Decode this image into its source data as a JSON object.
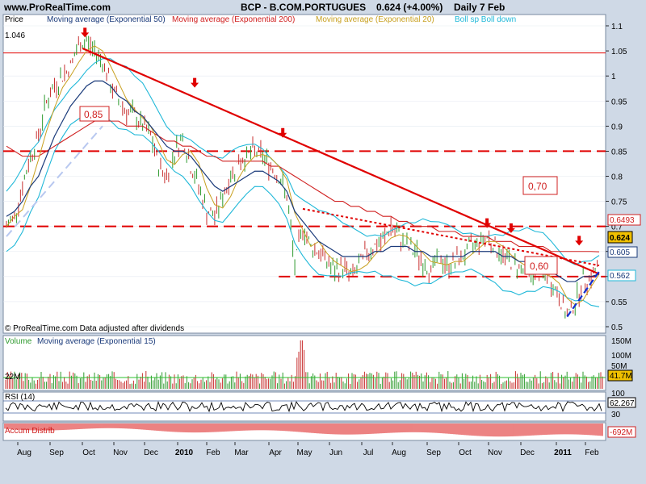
{
  "header": {
    "site": "www.ProRealTime.com",
    "title": "BCP - B.COM.PORTUGUES",
    "quote": "0.624 (+4.00%)",
    "period": "Daily  7 Feb"
  },
  "legend": {
    "price": "Price",
    "ma50": "Moving average (Exponential 50)",
    "ma200": "Moving average (Exponential 200)",
    "ma20": "Moving average (Exponential 20)",
    "bollinger": "Boll sp Boll down"
  },
  "colors": {
    "background": "#cfd9e6",
    "panel": "#ffffff",
    "ma50": "#1a3a7a",
    "ma200": "#d02020",
    "ma20": "#c8a020",
    "bollinger": "#20b8d8",
    "trend": "#e00000",
    "up_bar": "#2e9a2e",
    "down_bar": "#c83030",
    "volume": "#2ec02e",
    "accum": "#e03030"
  },
  "footer_note": "© ProRealTime.com  Data adjusted after dividends",
  "price_labels": {
    "top_left": "1.046",
    "l085": "0,85",
    "l070": "0,70",
    "l060": "0,60"
  },
  "right_badges": {
    "ma200": "0.6493",
    "last": "0.624",
    "ma50": "0.605",
    "boll_down": "0.562",
    "boll_up": "0.64"
  },
  "chart_data": {
    "type": "line",
    "title": "BCP - B.COM.PORTUGUES",
    "x_ticks": [
      "Aug",
      "Sep",
      "Oct",
      "Nov",
      "Dec",
      "2010",
      "Feb",
      "Mar",
      "Apr",
      "May",
      "Jun",
      "Jul",
      "Aug",
      "Sep",
      "Oct",
      "Nov",
      "Dec",
      "2011",
      "Feb"
    ],
    "y_ticks": [
      "1.1",
      "1.05",
      "1",
      "0.95",
      "0.9",
      "0.85",
      "0.8",
      "0.75",
      "0.7",
      "0.65",
      "0.6",
      "0.55",
      "0.5"
    ],
    "ylim": [
      0.5,
      1.1
    ],
    "price_x": [
      0,
      1,
      2,
      3,
      4,
      5,
      6,
      7,
      8,
      9,
      10,
      11,
      12,
      13,
      14,
      15,
      16,
      17,
      18,
      19,
      20,
      21,
      22,
      23,
      24,
      25,
      26,
      27,
      28,
      29,
      30,
      31,
      32,
      33,
      34,
      35,
      36,
      37,
      38,
      39,
      40,
      41,
      42,
      43,
      44,
      45,
      46,
      47,
      48,
      49,
      50,
      51,
      52,
      53,
      54,
      55,
      56,
      57,
      58,
      59,
      60,
      61,
      62,
      63,
      64,
      65,
      66,
      67,
      68,
      69,
      70,
      71,
      72,
      73,
      74
    ],
    "price": [
      0.7,
      0.72,
      0.78,
      0.84,
      0.88,
      0.95,
      0.98,
      1.0,
      1.02,
      1.06,
      1.07,
      1.05,
      1.03,
      0.98,
      0.95,
      0.93,
      0.92,
      0.9,
      0.88,
      0.82,
      0.8,
      0.85,
      0.88,
      0.82,
      0.78,
      0.73,
      0.72,
      0.76,
      0.8,
      0.83,
      0.84,
      0.85,
      0.84,
      0.82,
      0.8,
      0.76,
      0.62,
      0.7,
      0.66,
      0.65,
      0.63,
      0.61,
      0.62,
      0.6,
      0.62,
      0.65,
      0.66,
      0.67,
      0.7,
      0.68,
      0.66,
      0.65,
      0.63,
      0.61,
      0.64,
      0.62,
      0.63,
      0.64,
      0.66,
      0.67,
      0.68,
      0.66,
      0.64,
      0.63,
      0.62,
      0.61,
      0.6,
      0.61,
      0.59,
      0.56,
      0.52,
      0.55,
      0.59,
      0.6,
      0.624
    ],
    "ma50": [
      0.72,
      0.73,
      0.75,
      0.78,
      0.8,
      0.84,
      0.88,
      0.91,
      0.94,
      0.96,
      0.98,
      0.99,
      0.99,
      0.98,
      0.96,
      0.95,
      0.93,
      0.92,
      0.9,
      0.88,
      0.86,
      0.85,
      0.85,
      0.84,
      0.82,
      0.8,
      0.78,
      0.77,
      0.78,
      0.79,
      0.8,
      0.81,
      0.81,
      0.8,
      0.79,
      0.77,
      0.73,
      0.71,
      0.69,
      0.67,
      0.66,
      0.65,
      0.64,
      0.64,
      0.64,
      0.64,
      0.65,
      0.65,
      0.66,
      0.66,
      0.66,
      0.65,
      0.65,
      0.64,
      0.64,
      0.64,
      0.64,
      0.64,
      0.65,
      0.65,
      0.65,
      0.65,
      0.64,
      0.64,
      0.63,
      0.63,
      0.62,
      0.62,
      0.61,
      0.6,
      0.59,
      0.59,
      0.6,
      0.6,
      0.605
    ],
    "ma200": [
      0.86,
      0.85,
      0.84,
      0.84,
      0.84,
      0.85,
      0.86,
      0.87,
      0.88,
      0.89,
      0.9,
      0.91,
      0.91,
      0.91,
      0.91,
      0.9,
      0.9,
      0.9,
      0.89,
      0.88,
      0.87,
      0.87,
      0.86,
      0.86,
      0.85,
      0.84,
      0.84,
      0.83,
      0.83,
      0.83,
      0.83,
      0.83,
      0.83,
      0.82,
      0.82,
      0.81,
      0.8,
      0.79,
      0.78,
      0.77,
      0.76,
      0.75,
      0.75,
      0.74,
      0.74,
      0.73,
      0.73,
      0.72,
      0.72,
      0.71,
      0.71,
      0.7,
      0.7,
      0.7,
      0.69,
      0.69,
      0.69,
      0.68,
      0.68,
      0.68,
      0.68,
      0.67,
      0.67,
      0.67,
      0.66,
      0.66,
      0.66,
      0.66,
      0.65,
      0.65,
      0.65,
      0.65,
      0.65,
      0.65,
      0.6493
    ],
    "horizontal_levels": [
      1.046,
      0.85,
      0.7,
      0.6
    ],
    "volume_ticks": [
      "150M",
      "100M",
      "50M"
    ],
    "volume_label": "22M",
    "volume_last": "41.7M",
    "volume_legend": [
      "Volume",
      "Moving average (Exponential 15)"
    ],
    "rsi_label": "RSI (14)",
    "rsi_ticks": [
      "100",
      "70",
      "30"
    ],
    "rsi_last": "62.267",
    "accum_label": "Accum Distrib",
    "accum_last": "-692M"
  }
}
